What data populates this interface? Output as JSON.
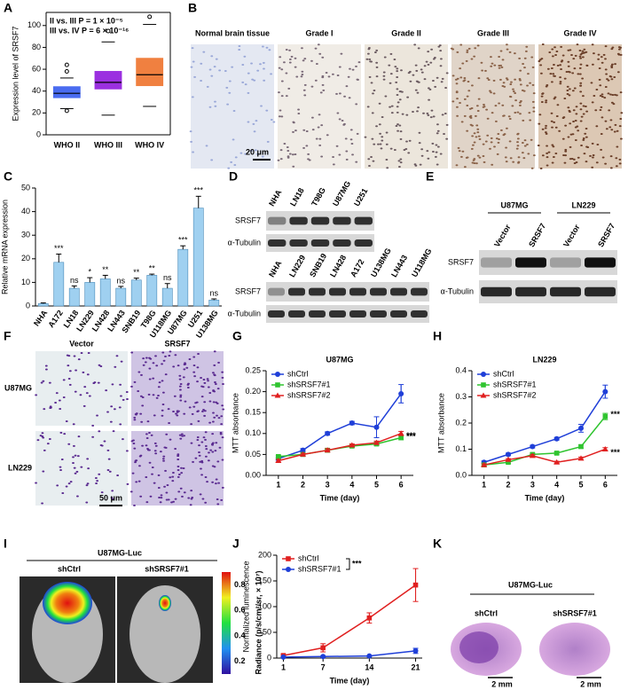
{
  "panel_letters": [
    "A",
    "B",
    "C",
    "D",
    "E",
    "F",
    "G",
    "H",
    "I",
    "J",
    "K"
  ],
  "chart_data": [
    {
      "type": "box",
      "ylabel": "Expression level of SRSF7",
      "categories": [
        "WHO II",
        "WHO III",
        "WHO IV"
      ],
      "colors": [
        "#4a6cf0",
        "#9b30e0",
        "#f08040"
      ],
      "boxes": [
        {
          "low": 24,
          "q1": 34,
          "median": 38,
          "q3": 44,
          "high": 52,
          "outliers": [
            22,
            58,
            64
          ]
        },
        {
          "low": 18,
          "q1": 42,
          "median": 48,
          "q3": 58,
          "high": 85,
          "outliers": [
            95
          ]
        },
        {
          "low": 26,
          "q1": 45,
          "median": 55,
          "q3": 70,
          "high": 101,
          "outliers": [
            108
          ]
        }
      ],
      "annotations": [
        "II vs. III  P = 1 × 10⁻⁵",
        "III vs. IV  P = 6 × 10⁻¹⁶"
      ],
      "ylim": [
        0,
        112
      ],
      "yticks": [
        0,
        20,
        40,
        60,
        80,
        100
      ]
    },
    {
      "type": "bar",
      "ylabel": "Relative mRNA expression",
      "color": "#9fd0f0",
      "categories": [
        "NHA",
        "A172",
        "LN18",
        "LN229",
        "LN428",
        "LN443",
        "SNB19",
        "T98G",
        "U118MG",
        "U87MG",
        "U251",
        "U138MG"
      ],
      "values": [
        1,
        18.5,
        7.5,
        10,
        11.5,
        7.5,
        11,
        13,
        7.5,
        24,
        41.5,
        2.5
      ],
      "errors": [
        0.3,
        3.5,
        1,
        2,
        1.5,
        0.8,
        0.8,
        0.5,
        2,
        1.5,
        5,
        0.5
      ],
      "labels": [
        null,
        "***",
        "ns",
        "*",
        "**",
        "ns",
        "**",
        "**",
        "ns",
        "***",
        "***",
        "ns"
      ],
      "ylim": [
        0,
        50
      ],
      "yticks": [
        0,
        10,
        20,
        30,
        40,
        50
      ]
    },
    {
      "type": "line",
      "title": "U87MG",
      "xlabel": "Time (day)",
      "ylabel": "MTT absorbance",
      "x": [
        1,
        2,
        3,
        4,
        5,
        6
      ],
      "xlim": [
        0.5,
        6.5
      ],
      "xticks": [
        1,
        2,
        3,
        4,
        5,
        6
      ],
      "ylim": [
        0,
        0.25
      ],
      "yticks": [
        {
          "value": 0,
          "label": "0.00"
        },
        {
          "value": 0.05,
          "label": "0.05"
        },
        {
          "value": 0.1,
          "label": "0.10"
        },
        {
          "value": 0.15,
          "label": "0.15"
        },
        {
          "value": 0.2,
          "label": "0.20"
        },
        {
          "value": 0.25,
          "label": "0.25"
        }
      ],
      "series": [
        {
          "name": "shCtrl",
          "color": "#1f3fd8",
          "marker": "circle",
          "values": [
            0.04,
            0.06,
            0.1,
            0.125,
            0.115,
            0.195
          ],
          "errors": [
            0.004,
            0.004,
            0.004,
            0.004,
            0.025,
            0.022
          ]
        },
        {
          "name": "shSRSF7#1",
          "color": "#2fc42f",
          "marker": "square",
          "values": [
            0.045,
            0.05,
            0.06,
            0.07,
            0.075,
            0.09
          ],
          "errors": [
            0.003,
            0.003,
            0.003,
            0.003,
            0.004,
            0.005
          ]
        },
        {
          "name": "shSRSF7#2",
          "color": "#e02020",
          "marker": "triangle",
          "values": [
            0.035,
            0.05,
            0.06,
            0.072,
            0.078,
            0.1
          ],
          "errors": [
            0.003,
            0.003,
            0.004,
            0.003,
            0.004,
            0.005
          ]
        }
      ],
      "annotations": [
        "***",
        "***"
      ]
    },
    {
      "type": "line",
      "title": "LN229",
      "xlabel": "Time (day)",
      "ylabel": "MTT absorbance",
      "x": [
        1,
        2,
        3,
        4,
        5,
        6
      ],
      "xlim": [
        0.5,
        6.5
      ],
      "xticks": [
        1,
        2,
        3,
        4,
        5,
        6
      ],
      "ylim": [
        0,
        0.4
      ],
      "yticks": [
        {
          "value": 0,
          "label": "0.0"
        },
        0.1,
        0.2,
        0.3,
        0.4
      ],
      "series": [
        {
          "name": "shCtrl",
          "color": "#1f3fd8",
          "marker": "circle",
          "values": [
            0.05,
            0.08,
            0.11,
            0.14,
            0.18,
            0.32
          ],
          "errors": [
            0.005,
            0.005,
            0.005,
            0.005,
            0.015,
            0.025
          ]
        },
        {
          "name": "shSRSF7#1",
          "color": "#2fc42f",
          "marker": "square",
          "values": [
            0.04,
            0.05,
            0.08,
            0.085,
            0.11,
            0.225
          ],
          "errors": [
            0.004,
            0.004,
            0.005,
            0.005,
            0.006,
            0.012
          ]
        },
        {
          "name": "shSRSF7#2",
          "color": "#e02020",
          "marker": "triangle",
          "values": [
            0.04,
            0.06,
            0.075,
            0.05,
            0.065,
            0.1
          ],
          "errors": [
            0.004,
            0.004,
            0.005,
            0.004,
            0.005,
            0.006
          ]
        }
      ],
      "annotations": [
        "***",
        "***"
      ]
    },
    {
      "type": "line",
      "xlabel": "Time (day)",
      "ylabel": "Normalized luminescence",
      "x": [
        1,
        7,
        14,
        21
      ],
      "xlim": [
        0,
        22
      ],
      "xticks": [
        1,
        7,
        14,
        21
      ],
      "ylim": [
        0,
        200
      ],
      "yticks": [
        0,
        50,
        100,
        150,
        200
      ],
      "series": [
        {
          "name": "shCtrl",
          "color": "#e02020",
          "marker": "square",
          "values": [
            5,
            20,
            78,
            142
          ],
          "errors": [
            2,
            8,
            10,
            32
          ]
        },
        {
          "name": "shSRSF7#1",
          "color": "#1f3fd8",
          "marker": "circle",
          "values": [
            2,
            3,
            4,
            14
          ],
          "errors": [
            1,
            1,
            1,
            5
          ]
        }
      ],
      "annotations": [
        "***"
      ]
    }
  ],
  "images": {
    "B": {
      "labels": [
        "Normal brain tissue",
        "Grade I",
        "Grade II",
        "Grade III",
        "Grade IV"
      ],
      "scale": "20 μm"
    },
    "D": {
      "top_lanes": [
        "NHA",
        "LN18",
        "T98G",
        "U87MG",
        "U251"
      ],
      "bottom_lanes": [
        "NHA",
        "LN229",
        "SNB19",
        "LN428",
        "A172",
        "U138MG",
        "LN443",
        "U118MG"
      ],
      "rows": [
        "SRSF7",
        "α-Tubulin"
      ]
    },
    "E": {
      "groups": [
        "U87MG",
        "LN229"
      ],
      "lanes": [
        "Vector",
        "SRSF7",
        "Vector",
        "SRSF7"
      ],
      "rows": [
        "SRSF7",
        "α-Tubulin"
      ]
    },
    "F": {
      "columns": [
        "Vector",
        "SRSF7"
      ],
      "rows": [
        "U87MG",
        "LN229"
      ],
      "scale": "50 μm"
    },
    "I": {
      "title": "U87MG-Luc",
      "groups": [
        "shCtrl",
        "shSRSF7#1"
      ],
      "colorbar_label": "Radiance (p/s/cm²/sr, × 10⁷)",
      "colorbar_lim": [
        0.1,
        0.9
      ],
      "colorbar_ticks": [
        0.2,
        0.4,
        0.6,
        0.8
      ]
    },
    "K": {
      "title": "U87MG-Luc",
      "groups": [
        "shCtrl",
        "shSRSF7#1"
      ],
      "scales": [
        "2 mm",
        "2 mm"
      ]
    }
  }
}
